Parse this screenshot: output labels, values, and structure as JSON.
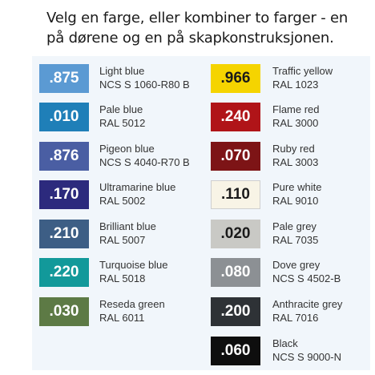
{
  "title_line1": "Velg en farge, eller kombiner to farger - en",
  "title_line2": "på dørene og en på skapkonstruksjonen.",
  "left_colors": [
    {
      "code": ".875",
      "name": "Light blue",
      "ref": "NCS S 1060-R80 B",
      "color": "#5b9ad3"
    },
    {
      "code": ".010",
      "name": "Pale blue",
      "ref": "RAL 5012",
      "color": "#1f7fb8"
    },
    {
      "code": ".876",
      "name": "Pigeon blue",
      "ref": "NCS S 4040-R70 B",
      "color": "#4a5ea3"
    },
    {
      "code": ".170",
      "name": "Ultramarine blue",
      "ref": "RAL 5002",
      "color": "#2c2a7d"
    },
    {
      "code": ".210",
      "name": "Brilliant blue",
      "ref": "RAL 5007",
      "color": "#3d5e85"
    },
    {
      "code": ".220",
      "name": "Turquoise blue",
      "ref": "RAL 5018",
      "color": "#12999a"
    },
    {
      "code": ".030",
      "name": "Reseda green",
      "ref": "RAL 6011",
      "color": "#5d7a45"
    }
  ],
  "right_colors": [
    {
      "code": ".966",
      "name": "Traffic yellow",
      "ref": "RAL 1023",
      "color": "#f5d400"
    },
    {
      "code": ".240",
      "name": "Flame red",
      "ref": "RAL 3000",
      "color": "#b01418"
    },
    {
      "code": ".070",
      "name": "Ruby red",
      "ref": "RAL 3003",
      "color": "#7d1416"
    },
    {
      "code": ".110",
      "name": "Pure white",
      "ref": "RAL 9010",
      "color": "#f8f4e6"
    },
    {
      "code": ".020",
      "name": "Pale grey",
      "ref": "RAL 7035",
      "color": "#c9c9c5"
    },
    {
      "code": ".080",
      "name": "Dove grey",
      "ref": "NCS S 4502-B",
      "color": "#8c9094"
    },
    {
      "code": ".200",
      "name": "Anthracite grey",
      "ref": "RAL 7016",
      "color": "#2e3236"
    },
    {
      "code": ".060",
      "name": "Black",
      "ref": "NCS S 9000-N",
      "color": "#0e0e0e"
    }
  ]
}
